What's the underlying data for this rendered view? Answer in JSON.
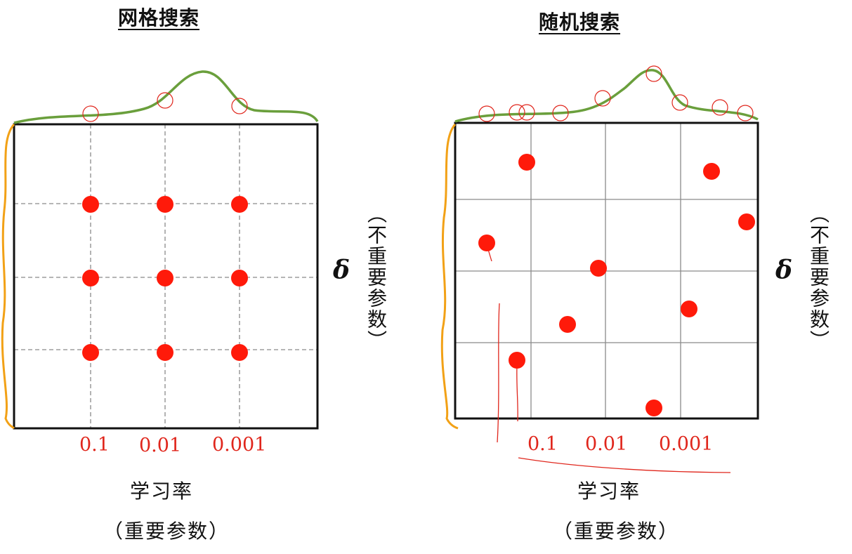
{
  "left_panel": {
    "title": "网格搜索",
    "ticks": [
      "0.1",
      "0.01",
      "0.001"
    ],
    "x_label": "学习率",
    "x_sublabel": "（重要参数）",
    "y_symbol": "δ",
    "y_label": "（不重要参数）"
  },
  "right_panel": {
    "title": "随机搜索",
    "ticks": [
      "0.1",
      "0.01",
      "0.001"
    ],
    "x_label": "学习率",
    "x_sublabel": "（重要参数）",
    "y_symbol": "δ",
    "y_label": "（不重要参数）"
  },
  "colors": {
    "points": "#ff1a0a",
    "curve": "#6a9f3c",
    "side_curve": "#f2a116",
    "annotation": "#e0261c",
    "grid_dashed": "#8a8a8a",
    "grid_solid": "#8a8a8a",
    "frame": "#111111"
  }
}
